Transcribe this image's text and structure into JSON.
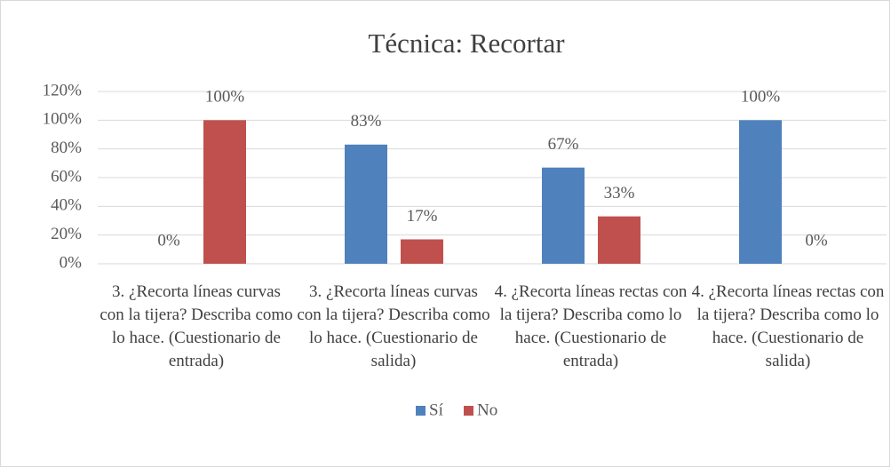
{
  "chart_data": {
    "type": "bar",
    "title": "Técnica: Recortar",
    "categories": [
      "3. ¿Recorta líneas curvas con la tijera? Describa como lo hace. (Cuestionario de entrada)",
      "3. ¿Recorta líneas curvas con la tijera? Describa como lo hace. (Cuestionario de salida)",
      "4. ¿Recorta líneas rectas con la tijera? Describa como lo hace. (Cuestionario de entrada)",
      "4. ¿Recorta líneas rectas con la tijera? Describa como lo hace. (Cuestionario de salida)"
    ],
    "series": [
      {
        "name": "Sí",
        "color": "#4f81bd",
        "values": [
          0,
          83,
          67,
          100
        ],
        "value_labels": [
          "0%",
          "83%",
          "67%",
          "100%"
        ]
      },
      {
        "name": "No",
        "color": "#c0504d",
        "values": [
          100,
          17,
          33,
          0
        ],
        "value_labels": [
          "100%",
          "17%",
          "33%",
          "0%"
        ]
      }
    ],
    "ylim": [
      0,
      120
    ],
    "yticks": [
      {
        "value": 0,
        "label": "0%"
      },
      {
        "value": 20,
        "label": "20%"
      },
      {
        "value": 40,
        "label": "40%"
      },
      {
        "value": 60,
        "label": "60%"
      },
      {
        "value": 80,
        "label": "80%"
      },
      {
        "value": 100,
        "label": "100%"
      },
      {
        "value": 120,
        "label": "120%"
      }
    ],
    "grid": true,
    "legend": "bottom"
  }
}
